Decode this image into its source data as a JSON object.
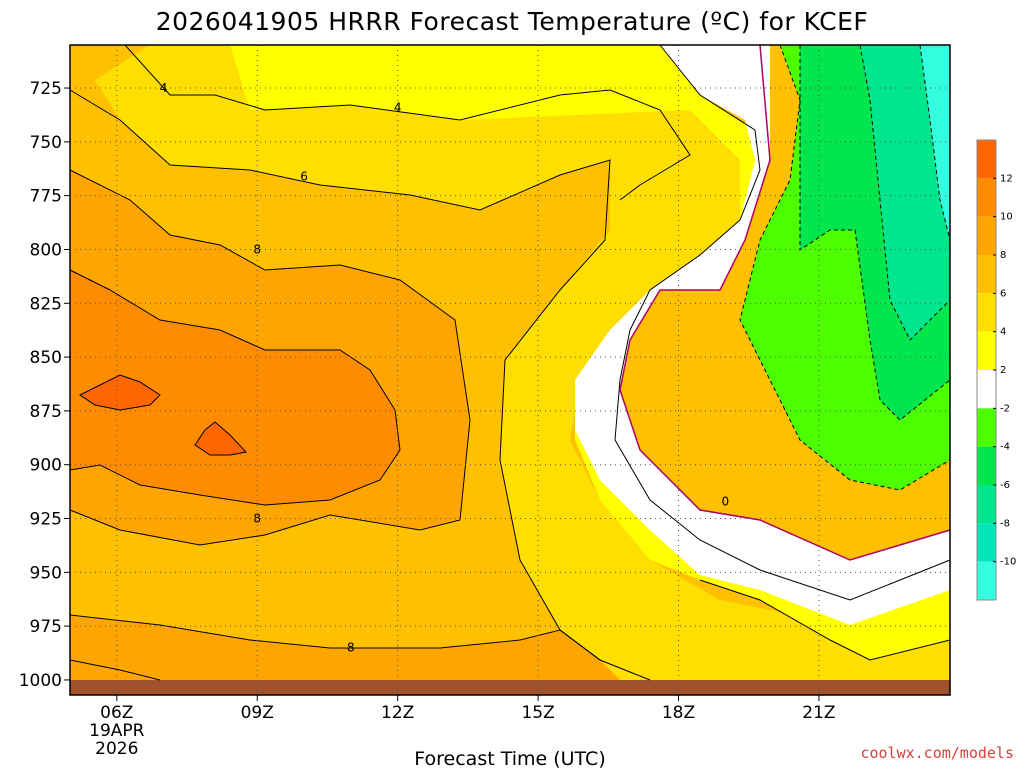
{
  "chart_data": {
    "type": "contour",
    "title": "2026041905 HRRR Forecast Temperature (ºC) for KCEF",
    "xlabel": "Forecast Time (UTC)",
    "x_ticks": [
      "06Z",
      "09Z",
      "12Z",
      "15Z",
      "18Z",
      "21Z"
    ],
    "x_tick_extra": [
      "19APR",
      "2026"
    ],
    "x_hours": [
      5,
      23.8
    ],
    "y_ticks": [
      725,
      750,
      775,
      800,
      825,
      850,
      875,
      900,
      925,
      950,
      975,
      1000
    ],
    "y_range": [
      705,
      1007
    ],
    "contour_labels": [
      {
        "text": "4",
        "x": 7.0,
        "y": 725
      },
      {
        "text": "4",
        "x": 12.0,
        "y": 734
      },
      {
        "text": "6",
        "x": 10.0,
        "y": 766
      },
      {
        "text": "8",
        "x": 9.0,
        "y": 800
      },
      {
        "text": "8",
        "x": 9.0,
        "y": 925
      },
      {
        "text": "8",
        "x": 11.0,
        "y": 985
      },
      {
        "text": "0",
        "x": 19.0,
        "y": 917
      }
    ],
    "colorbar": {
      "ticks": [
        "12",
        "10",
        "8",
        "6",
        "4",
        "2",
        "-2",
        "-4",
        "-6",
        "-8",
        "-10"
      ],
      "colors": [
        "#ff6600",
        "#ff8c00",
        "#ffa500",
        "#ffc000",
        "#ffdf00",
        "#ffff00",
        "#ffffff",
        "#4cff00",
        "#00e64c",
        "#00e68c",
        "#00e6b8",
        "#33ffe0"
      ]
    }
  },
  "credit": "coolwx.com/models"
}
